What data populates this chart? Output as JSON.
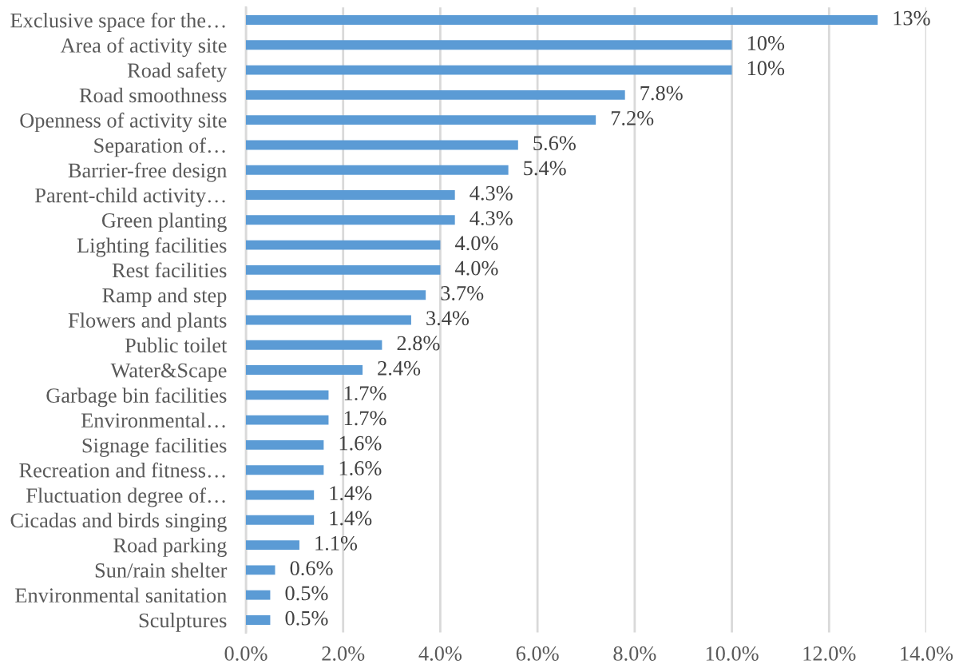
{
  "chart_data": {
    "type": "bar",
    "orientation": "horizontal",
    "categories": [
      "Exclusive space for the…",
      "Area of activity site",
      "Road safety",
      "Road smoothness",
      "Openness of activity site",
      "Separation of…",
      "Barrier-free design",
      "Parent-child activity…",
      "Green planting",
      "Lighting facilities",
      "Rest facilities",
      "Ramp and step",
      "Flowers and plants",
      "Public toilet",
      "Water&Scape",
      "Garbage bin facilities",
      "Environmental…",
      "Signage facilities",
      "Recreation and fitness…",
      "Fluctuation degree of…",
      "Cicadas and birds singing",
      "Road parking",
      "Sun/rain shelter",
      "Environmental sanitation",
      "Sculptures"
    ],
    "values": [
      13,
      10,
      10,
      7.8,
      7.2,
      5.6,
      5.4,
      4.3,
      4.3,
      4.0,
      4.0,
      3.7,
      3.4,
      2.8,
      2.4,
      1.7,
      1.7,
      1.6,
      1.6,
      1.4,
      1.4,
      1.1,
      0.6,
      0.5,
      0.5
    ],
    "value_labels": [
      "13%",
      "10%",
      "10%",
      "7.8%",
      "7.2%",
      "5.6%",
      "5.4%",
      "4.3%",
      "4.3%",
      "4.0%",
      "4.0%",
      "3.7%",
      "3.4%",
      "2.8%",
      "2.4%",
      "1.7%",
      "1.7%",
      "1.6%",
      "1.6%",
      "1.4%",
      "1.4%",
      "1.1%",
      "0.6%",
      "0.5%",
      "0.5%"
    ],
    "color": "#5b9bd5",
    "xlim": [
      0,
      14
    ],
    "xticks": [
      {
        "value": 0,
        "label": "0.0%"
      },
      {
        "value": 2,
        "label": "2.0%"
      },
      {
        "value": 4,
        "label": "4.0%"
      },
      {
        "value": 6,
        "label": "6.0%"
      },
      {
        "value": 8,
        "label": "8.0%"
      },
      {
        "value": 10,
        "label": "10.0%"
      },
      {
        "value": 12,
        "label": "12.0%"
      },
      {
        "value": 14,
        "label": "14.0%"
      }
    ],
    "grid": "x"
  }
}
